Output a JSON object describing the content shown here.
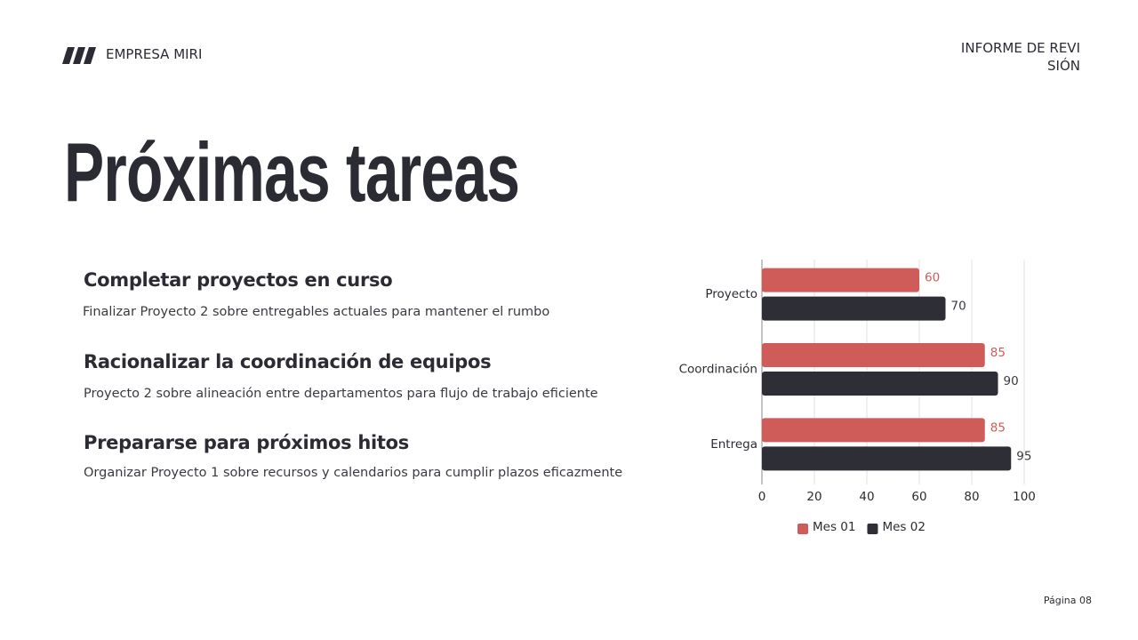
{
  "header": {
    "company": "EMPRESA MIRI",
    "report": [
      "INFORME DE REVI",
      "SIÓN"
    ]
  },
  "title": "Próximas tareas",
  "items": [
    {
      "heading": "Completar proyectos en curso",
      "text": "Finalizar Proyecto 2 sobre entregables actuales para mantener el rumbo"
    },
    {
      "heading": "Racionalizar la coordinación de equipos",
      "text": "Proyecto 2 sobre alineación entre departamentos para flujo de trabajo eficiente"
    },
    {
      "heading": "Prepararse para próximos hitos",
      "text": "Organizar Proyecto 1 sobre recursos y calendarios para cumplir plazos eficazmente"
    }
  ],
  "chart_data": {
    "type": "hbar",
    "categories": [
      "Proyecto",
      "Coordinación",
      "Entrega"
    ],
    "series": [
      {
        "name": "Mes 01",
        "color": "#d05c5a",
        "values": [
          60,
          85,
          85
        ]
      },
      {
        "name": "Mes 02",
        "color": "#2e2e36",
        "values": [
          70,
          90,
          95
        ]
      }
    ],
    "xlim": [
      0,
      100
    ],
    "xticks": [
      0,
      20,
      40,
      60,
      80,
      100
    ],
    "grid": true,
    "legend": "bottom"
  },
  "page": "Página 08"
}
